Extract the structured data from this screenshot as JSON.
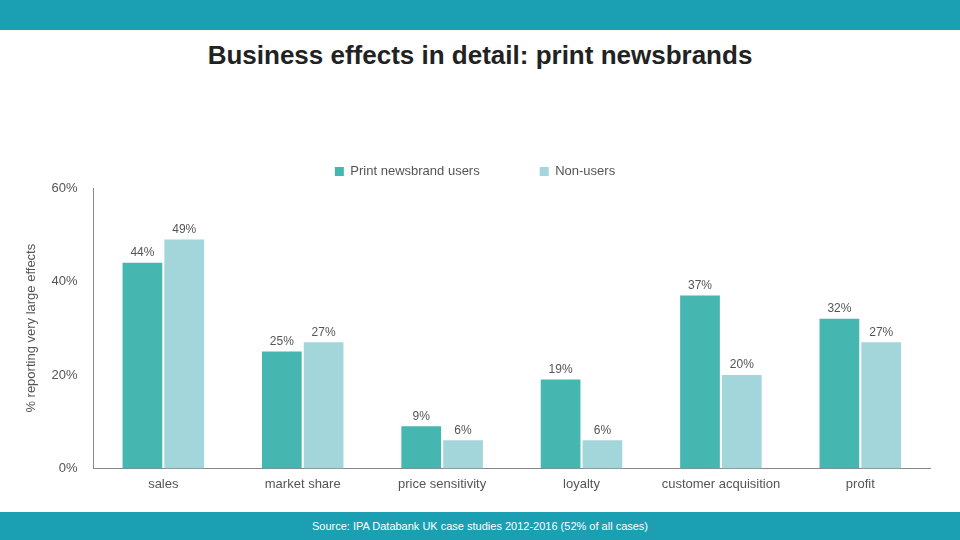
{
  "chart_data": {
    "type": "bar",
    "title": "Business effects in detail: print newsbrands",
    "y_label": "% reporting very large effects",
    "source": "Source: IPA Databank UK case studies 2012-2016 (52% of all cases)",
    "categories": [
      "sales",
      "market share",
      "price sensitivity",
      "loyalty",
      "customer acquisition",
      "profit"
    ],
    "series": [
      {
        "name": "Print newsbrand users",
        "color": "#45b7b0",
        "values": [
          44,
          25,
          9,
          19,
          37,
          32
        ],
        "value_labels": [
          "44%",
          "25%",
          "9%",
          "19%",
          "37%",
          "32%"
        ]
      },
      {
        "name": "Non-users",
        "color": "#a3d6db",
        "values": [
          49,
          27,
          6,
          6,
          20,
          27
        ],
        "value_labels": [
          "49%",
          "27%",
          "6%",
          "6%",
          "20%",
          "27%"
        ]
      }
    ],
    "ylim": [
      0,
      60
    ],
    "yticks": [
      {
        "value": 0,
        "label": "0%"
      },
      {
        "value": 20,
        "label": "20%"
      },
      {
        "value": 40,
        "label": "40%"
      },
      {
        "value": 60,
        "label": "60%"
      }
    ],
    "grid": false,
    "legend": "top",
    "data_labels": true
  }
}
